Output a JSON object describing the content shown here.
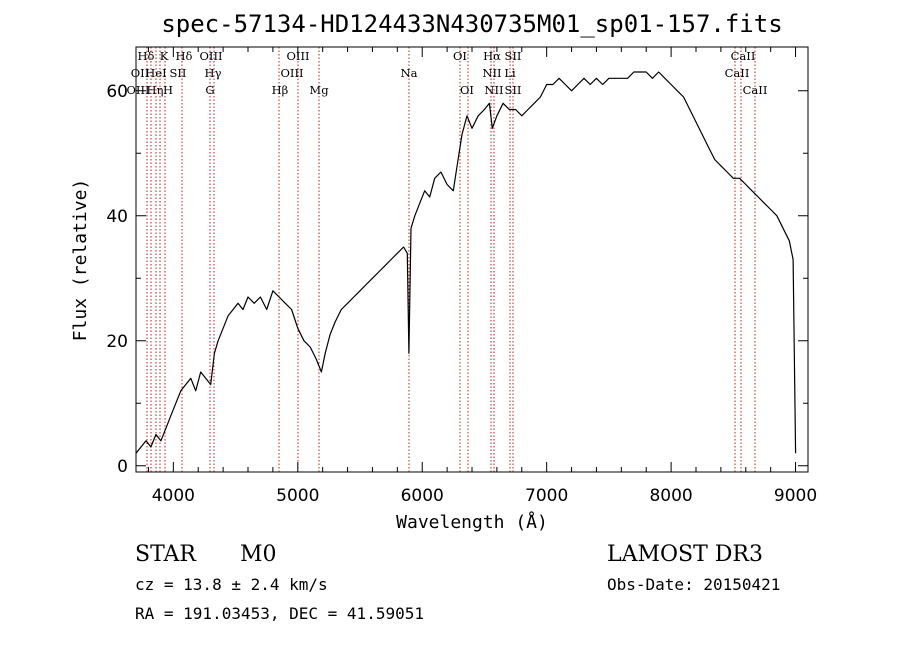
{
  "chart_data": {
    "type": "line",
    "title": "spec-57134-HD124433N430735M01_sp01-157.fits",
    "xlabel": "Wavelength (Å)",
    "ylabel": "Flux (relative)",
    "xlim": [
      3700,
      9100
    ],
    "ylim": [
      -1,
      67
    ],
    "x_ticks": [
      4000,
      5000,
      6000,
      7000,
      8000,
      9000
    ],
    "y_ticks": [
      0,
      20,
      40,
      60
    ],
    "grid": false,
    "series": [
      {
        "color": "#000000",
        "x": [
          3700,
          3740,
          3780,
          3820,
          3860,
          3900,
          3940,
          3980,
          4020,
          4060,
          4100,
          4140,
          4180,
          4220,
          4260,
          4300,
          4330,
          4360,
          4400,
          4440,
          4480,
          4520,
          4560,
          4600,
          4650,
          4700,
          4750,
          4800,
          4850,
          4900,
          4950,
          5000,
          5050,
          5100,
          5150,
          5190,
          5220,
          5260,
          5300,
          5350,
          5400,
          5450,
          5500,
          5550,
          5600,
          5650,
          5700,
          5750,
          5800,
          5850,
          5880,
          5893,
          5910,
          5940,
          5980,
          6020,
          6060,
          6100,
          6150,
          6200,
          6250,
          6280,
          6320,
          6360,
          6400,
          6450,
          6500,
          6540,
          6563,
          6600,
          6650,
          6700,
          6750,
          6800,
          6850,
          6900,
          6950,
          7000,
          7050,
          7100,
          7150,
          7200,
          7250,
          7300,
          7350,
          7400,
          7450,
          7500,
          7550,
          7600,
          7650,
          7700,
          7750,
          7800,
          7850,
          7900,
          7950,
          8000,
          8050,
          8100,
          8150,
          8200,
          8250,
          8300,
          8350,
          8400,
          8450,
          8500,
          8550,
          8600,
          8650,
          8700,
          8750,
          8800,
          8850,
          8900,
          8950,
          8980,
          9000
        ],
        "y": [
          2,
          3,
          4,
          3,
          5,
          4,
          6,
          8,
          10,
          12,
          13,
          14,
          12,
          15,
          14,
          13,
          18,
          20,
          22,
          24,
          25,
          26,
          25,
          27,
          26,
          27,
          25,
          28,
          27,
          26,
          25,
          22,
          20,
          19,
          17,
          15,
          18,
          21,
          23,
          25,
          26,
          27,
          28,
          29,
          30,
          31,
          32,
          33,
          34,
          35,
          34,
          18,
          38,
          40,
          42,
          44,
          43,
          46,
          47,
          45,
          44,
          48,
          53,
          56,
          54,
          56,
          57,
          58,
          54,
          56,
          58,
          57,
          57,
          56,
          57,
          58,
          59,
          61,
          61,
          62,
          61,
          60,
          61,
          62,
          61,
          62,
          61,
          62,
          62,
          62,
          62,
          63,
          63,
          63,
          62,
          63,
          62,
          61,
          60,
          59,
          57,
          55,
          53,
          51,
          49,
          48,
          47,
          46,
          46,
          45,
          44,
          43,
          42,
          41,
          40,
          38,
          36,
          33,
          2
        ]
      }
    ],
    "annotations": [
      "Hδ",
      "K",
      "Hδ",
      "OIII",
      "OIII",
      "OI",
      "Hα",
      "SII",
      "CaII",
      "OII",
      "HeI",
      "SII",
      "Hγ",
      "OIII",
      "NII",
      "Li",
      "CaII",
      "OIII",
      "Hη",
      "H",
      "G",
      "Hβ",
      "Mg",
      "Na",
      "OI",
      "NII",
      "SII",
      "CaII"
    ]
  },
  "info": {
    "object_class": "STAR",
    "subclass": "M0",
    "survey": "LAMOST DR3",
    "cz": "cz = 13.8 ± 2.4 km/s",
    "obs_date": "Obs-Date: 20150421",
    "coords": "RA = 191.03453, DEC =  41.59051"
  }
}
